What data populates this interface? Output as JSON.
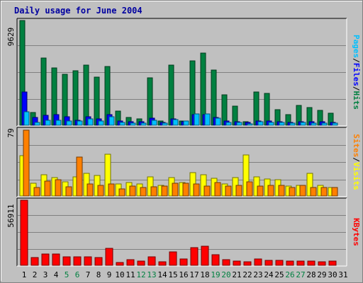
{
  "title": "Daily usage for June 2004",
  "colors": {
    "hits": "#008040",
    "files": "#0000ff",
    "pages": "#00c0ff",
    "visits": "#ffff00",
    "sites": "#ff8000",
    "kbytes": "#ff0000",
    "panel_bg": "#c0c0c0",
    "gridline": "#808080",
    "weekend_label": "#008040",
    "weekday_label": "#000000"
  },
  "chart_data": [
    {
      "type": "bar",
      "panel": "hits-files-pages",
      "categories": [
        "1",
        "2",
        "3",
        "4",
        "5",
        "6",
        "7",
        "8",
        "9",
        "10",
        "11",
        "12",
        "13",
        "14",
        "15",
        "16",
        "17",
        "18",
        "19",
        "20",
        "21",
        "22",
        "23",
        "24",
        "25",
        "26",
        "27",
        "28",
        "29",
        "30",
        "31"
      ],
      "y_max_label": "9629",
      "ylim": [
        0,
        9629
      ],
      "right_label_parts": [
        "Pages",
        "Files",
        "Hits"
      ],
      "series": [
        {
          "name": "Hits",
          "values": [
            9629,
            1200,
            6150,
            5280,
            4700,
            5000,
            5500,
            4450,
            5420,
            1300,
            700,
            560,
            4350,
            400,
            5550,
            420,
            5930,
            6650,
            5080,
            2800,
            1750,
            350,
            3050,
            2900,
            1400,
            1000,
            1850,
            1600,
            1350,
            1100,
            0
          ]
        },
        {
          "name": "Files",
          "values": [
            3050,
            700,
            900,
            1000,
            760,
            450,
            750,
            600,
            1000,
            400,
            300,
            320,
            650,
            250,
            600,
            350,
            950,
            1000,
            700,
            400,
            300,
            250,
            400,
            400,
            350,
            250,
            300,
            300,
            300,
            250,
            0
          ]
        },
        {
          "name": "Pages",
          "values": [
            1250,
            280,
            480,
            460,
            400,
            420,
            600,
            400,
            800,
            280,
            200,
            220,
            450,
            180,
            530,
            370,
            1050,
            1030,
            620,
            260,
            290,
            140,
            330,
            240,
            290,
            180,
            270,
            200,
            200,
            180,
            0
          ]
        }
      ]
    },
    {
      "type": "bar",
      "panel": "visits-sites",
      "categories": [
        "1",
        "2",
        "3",
        "4",
        "5",
        "6",
        "7",
        "8",
        "9",
        "10",
        "11",
        "12",
        "13",
        "14",
        "15",
        "16",
        "17",
        "18",
        "19",
        "20",
        "21",
        "22",
        "23",
        "24",
        "25",
        "26",
        "27",
        "28",
        "29",
        "30",
        "31"
      ],
      "y_max_label": "79",
      "ylim": [
        0,
        79
      ],
      "right_label_parts": [
        "Sites",
        "Visits"
      ],
      "series": [
        {
          "name": "Visits",
          "values": [
            48,
            15,
            25,
            22,
            17,
            23,
            27,
            24,
            50,
            14,
            16,
            14,
            23,
            13,
            22,
            16,
            28,
            25,
            21,
            14,
            22,
            49,
            23,
            20,
            19,
            12,
            13,
            27,
            13,
            10,
            0
          ]
        },
        {
          "name": "Sites",
          "values": [
            78,
            10,
            18,
            19,
            11,
            46,
            14,
            13,
            14,
            8,
            12,
            10,
            11,
            12,
            15,
            15,
            14,
            12,
            16,
            12,
            13,
            17,
            12,
            13,
            13,
            10,
            13,
            10,
            10,
            10,
            0
          ]
        }
      ]
    },
    {
      "type": "bar",
      "panel": "kbytes",
      "categories": [
        "1",
        "2",
        "3",
        "4",
        "5",
        "6",
        "7",
        "8",
        "9",
        "10",
        "11",
        "12",
        "13",
        "14",
        "15",
        "16",
        "17",
        "18",
        "19",
        "20",
        "21",
        "22",
        "23",
        "24",
        "25",
        "26",
        "27",
        "28",
        "29",
        "30",
        "31"
      ],
      "y_max_label": "56911",
      "ylim": [
        0,
        56911
      ],
      "right_label_parts": [
        "KBytes"
      ],
      "series": [
        {
          "name": "KBytes",
          "values": [
            56911,
            6800,
            9600,
            9600,
            7600,
            7500,
            7600,
            7000,
            14700,
            2500,
            4800,
            4000,
            7200,
            3100,
            11600,
            5400,
            15200,
            17000,
            9400,
            4800,
            3600,
            2900,
            5600,
            4200,
            4600,
            3800,
            3800,
            4000,
            3100,
            3900,
            0
          ]
        }
      ]
    }
  ],
  "x_day_labels": [
    {
      "label": "1",
      "weekend": false
    },
    {
      "label": "2",
      "weekend": false
    },
    {
      "label": "3",
      "weekend": false
    },
    {
      "label": "4",
      "weekend": false
    },
    {
      "label": "5",
      "weekend": true
    },
    {
      "label": "6",
      "weekend": true
    },
    {
      "label": "7",
      "weekend": false
    },
    {
      "label": "8",
      "weekend": false
    },
    {
      "label": "9",
      "weekend": false
    },
    {
      "label": "10",
      "weekend": false
    },
    {
      "label": "11",
      "weekend": false
    },
    {
      "label": "12",
      "weekend": true
    },
    {
      "label": "13",
      "weekend": true
    },
    {
      "label": "14",
      "weekend": false
    },
    {
      "label": "15",
      "weekend": false
    },
    {
      "label": "16",
      "weekend": false
    },
    {
      "label": "17",
      "weekend": false
    },
    {
      "label": "18",
      "weekend": false
    },
    {
      "label": "19",
      "weekend": true
    },
    {
      "label": "20",
      "weekend": true
    },
    {
      "label": "21",
      "weekend": false
    },
    {
      "label": "22",
      "weekend": false
    },
    {
      "label": "23",
      "weekend": false
    },
    {
      "label": "24",
      "weekend": false
    },
    {
      "label": "25",
      "weekend": false
    },
    {
      "label": "26",
      "weekend": true
    },
    {
      "label": "27",
      "weekend": true
    },
    {
      "label": "28",
      "weekend": false
    },
    {
      "label": "29",
      "weekend": false
    },
    {
      "label": "30",
      "weekend": false
    },
    {
      "label": "31",
      "weekend": false
    }
  ]
}
